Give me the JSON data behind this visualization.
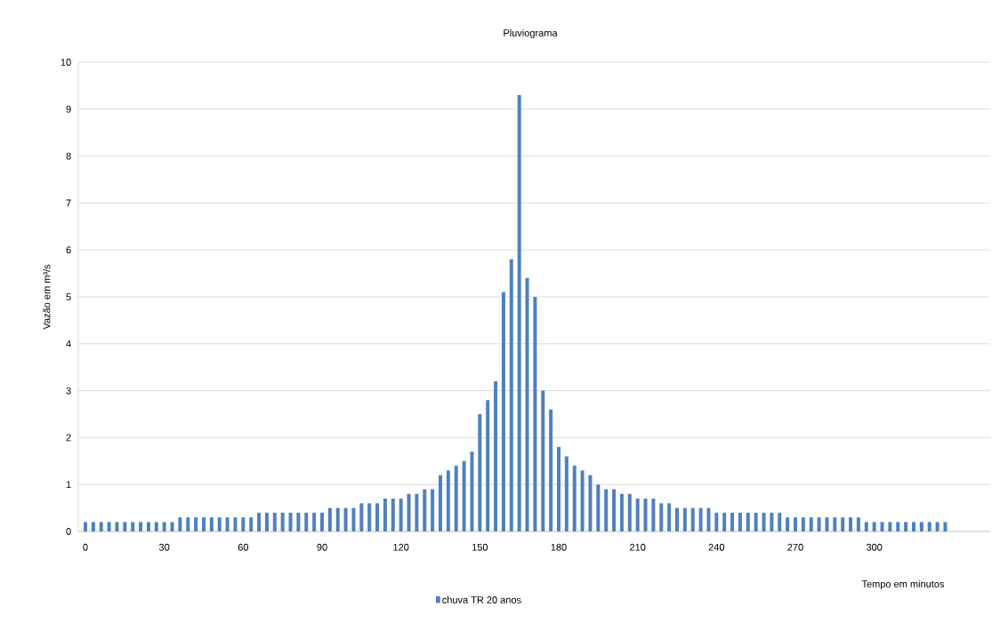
{
  "chart_data": {
    "type": "bar",
    "title": "Pluviograma",
    "xlabel": "Tempo em minutos",
    "ylabel": "Vazão em m³/s",
    "categories": [
      "0",
      null,
      null,
      null,
      null,
      null,
      null,
      null,
      null,
      null,
      "30",
      null,
      null,
      null,
      null,
      null,
      null,
      null,
      null,
      null,
      "60",
      null,
      null,
      null,
      null,
      null,
      null,
      null,
      null,
      null,
      "90",
      null,
      null,
      null,
      null,
      null,
      null,
      null,
      null,
      null,
      "120",
      null,
      null,
      null,
      null,
      null,
      null,
      null,
      null,
      null,
      "150",
      null,
      null,
      null,
      null,
      null,
      null,
      null,
      null,
      null,
      "180",
      null,
      null,
      null,
      null,
      null,
      null,
      null,
      null,
      null,
      "210",
      null,
      null,
      null,
      null,
      null,
      null,
      null,
      null,
      null,
      "240",
      null,
      null,
      null,
      null,
      null,
      null,
      null,
      null,
      null,
      "270",
      null,
      null,
      null,
      null,
      null,
      null,
      null,
      null,
      null,
      "300",
      null,
      null,
      null,
      null,
      null,
      null,
      null,
      null,
      null
    ],
    "series": [
      {
        "name": "chuva TR 20 anos",
        "color": "#4f81bd",
        "values": [
          0.2,
          0.2,
          0.2,
          0.2,
          0.2,
          0.2,
          0.2,
          0.2,
          0.2,
          0.2,
          0.2,
          0.2,
          0.3,
          0.3,
          0.3,
          0.3,
          0.3,
          0.3,
          0.3,
          0.3,
          0.3,
          0.3,
          0.4,
          0.4,
          0.4,
          0.4,
          0.4,
          0.4,
          0.4,
          0.4,
          0.4,
          0.5,
          0.5,
          0.5,
          0.5,
          0.6,
          0.6,
          0.6,
          0.7,
          0.7,
          0.7,
          0.8,
          0.8,
          0.9,
          0.9,
          1.2,
          1.3,
          1.4,
          1.5,
          1.7,
          2.5,
          2.8,
          3.2,
          5.1,
          5.8,
          9.3,
          5.4,
          5.0,
          3.0,
          2.6,
          1.8,
          1.6,
          1.4,
          1.3,
          1.2,
          1.0,
          0.9,
          0.9,
          0.8,
          0.8,
          0.7,
          0.7,
          0.7,
          0.6,
          0.6,
          0.5,
          0.5,
          0.5,
          0.5,
          0.5,
          0.4,
          0.4,
          0.4,
          0.4,
          0.4,
          0.4,
          0.4,
          0.4,
          0.4,
          0.3,
          0.3,
          0.3,
          0.3,
          0.3,
          0.3,
          0.3,
          0.3,
          0.3,
          0.3,
          0.2,
          0.2,
          0.2,
          0.2,
          0.2,
          0.2,
          0.2,
          0.2,
          0.2,
          0.2,
          0.2
        ]
      }
    ],
    "ylim": [
      0,
      10
    ],
    "yticks": [
      0,
      1,
      2,
      3,
      4,
      5,
      6,
      7,
      8,
      9,
      10
    ],
    "grid": "y",
    "legend": "bottom"
  }
}
